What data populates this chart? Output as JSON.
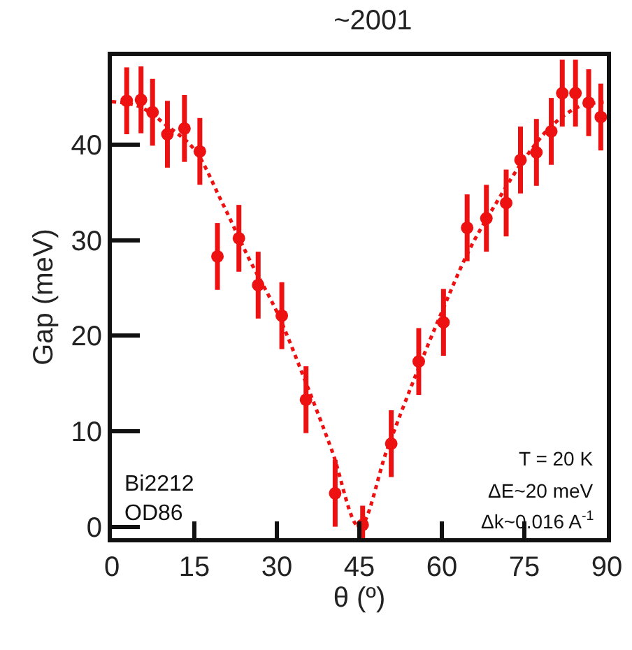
{
  "chart_data": {
    "type": "scatter",
    "title": "~2001",
    "xlabel": "θ (º)",
    "ylabel": "Gap (meV)",
    "xlim": [
      0,
      90
    ],
    "ylim": [
      -1.2,
      49.3
    ],
    "xticks": [
      0,
      15,
      30,
      45,
      60,
      75,
      90
    ],
    "yticks": [
      0,
      10,
      20,
      30,
      40
    ],
    "grid": false,
    "annotations": [
      "Bi2212\nOD86",
      "T = 20 K",
      "ΔE~20 meV",
      "Δk~0.016 A$^{-1}$"
    ],
    "series": [
      {
        "marker": "circle",
        "color": "#ee1111",
        "x": [
          2.7,
          5.3,
          7.4,
          10.1,
          13.2,
          16.0,
          19.2,
          23.1,
          26.6,
          30.9,
          35.3,
          40.6,
          45.6,
          50.8,
          55.8,
          60.3,
          64.6,
          68.1,
          71.7,
          74.3,
          77.2,
          79.9,
          81.9,
          84.3,
          86.7,
          88.9
        ],
        "values": [
          44.6,
          44.7,
          43.4,
          41.1,
          41.7,
          39.3,
          28.3,
          30.2,
          25.3,
          22.1,
          13.3,
          3.5,
          0.2,
          8.7,
          17.3,
          21.4,
          31.3,
          32.3,
          33.9,
          38.4,
          39.2,
          41.4,
          45.4,
          45.4,
          44.4,
          42.9
        ],
        "errors": [
          3.5,
          3.5,
          3.5,
          3.5,
          3.5,
          3.5,
          3.5,
          3.5,
          3.5,
          3.5,
          3.5,
          3.5,
          2,
          3.5,
          3.5,
          3.5,
          3.5,
          3.5,
          3.5,
          3.5,
          3.5,
          3.5,
          3.5,
          3.5,
          3.5,
          3.5
        ]
      },
      {
        "type": "line",
        "marker": "none",
        "color": "#ee1111",
        "line_style": "dotted",
        "x": [
          0,
          5,
          10,
          15,
          20,
          25,
          30,
          35,
          40,
          45,
          50,
          55,
          60,
          65,
          70,
          75,
          80,
          85,
          90
        ],
        "values": [
          44.5,
          44,
          42,
          39.5,
          34,
          28,
          22.5,
          15.5,
          8,
          0,
          8,
          15.5,
          22.5,
          29,
          34,
          38.5,
          42,
          44,
          44.5
        ]
      }
    ]
  }
}
